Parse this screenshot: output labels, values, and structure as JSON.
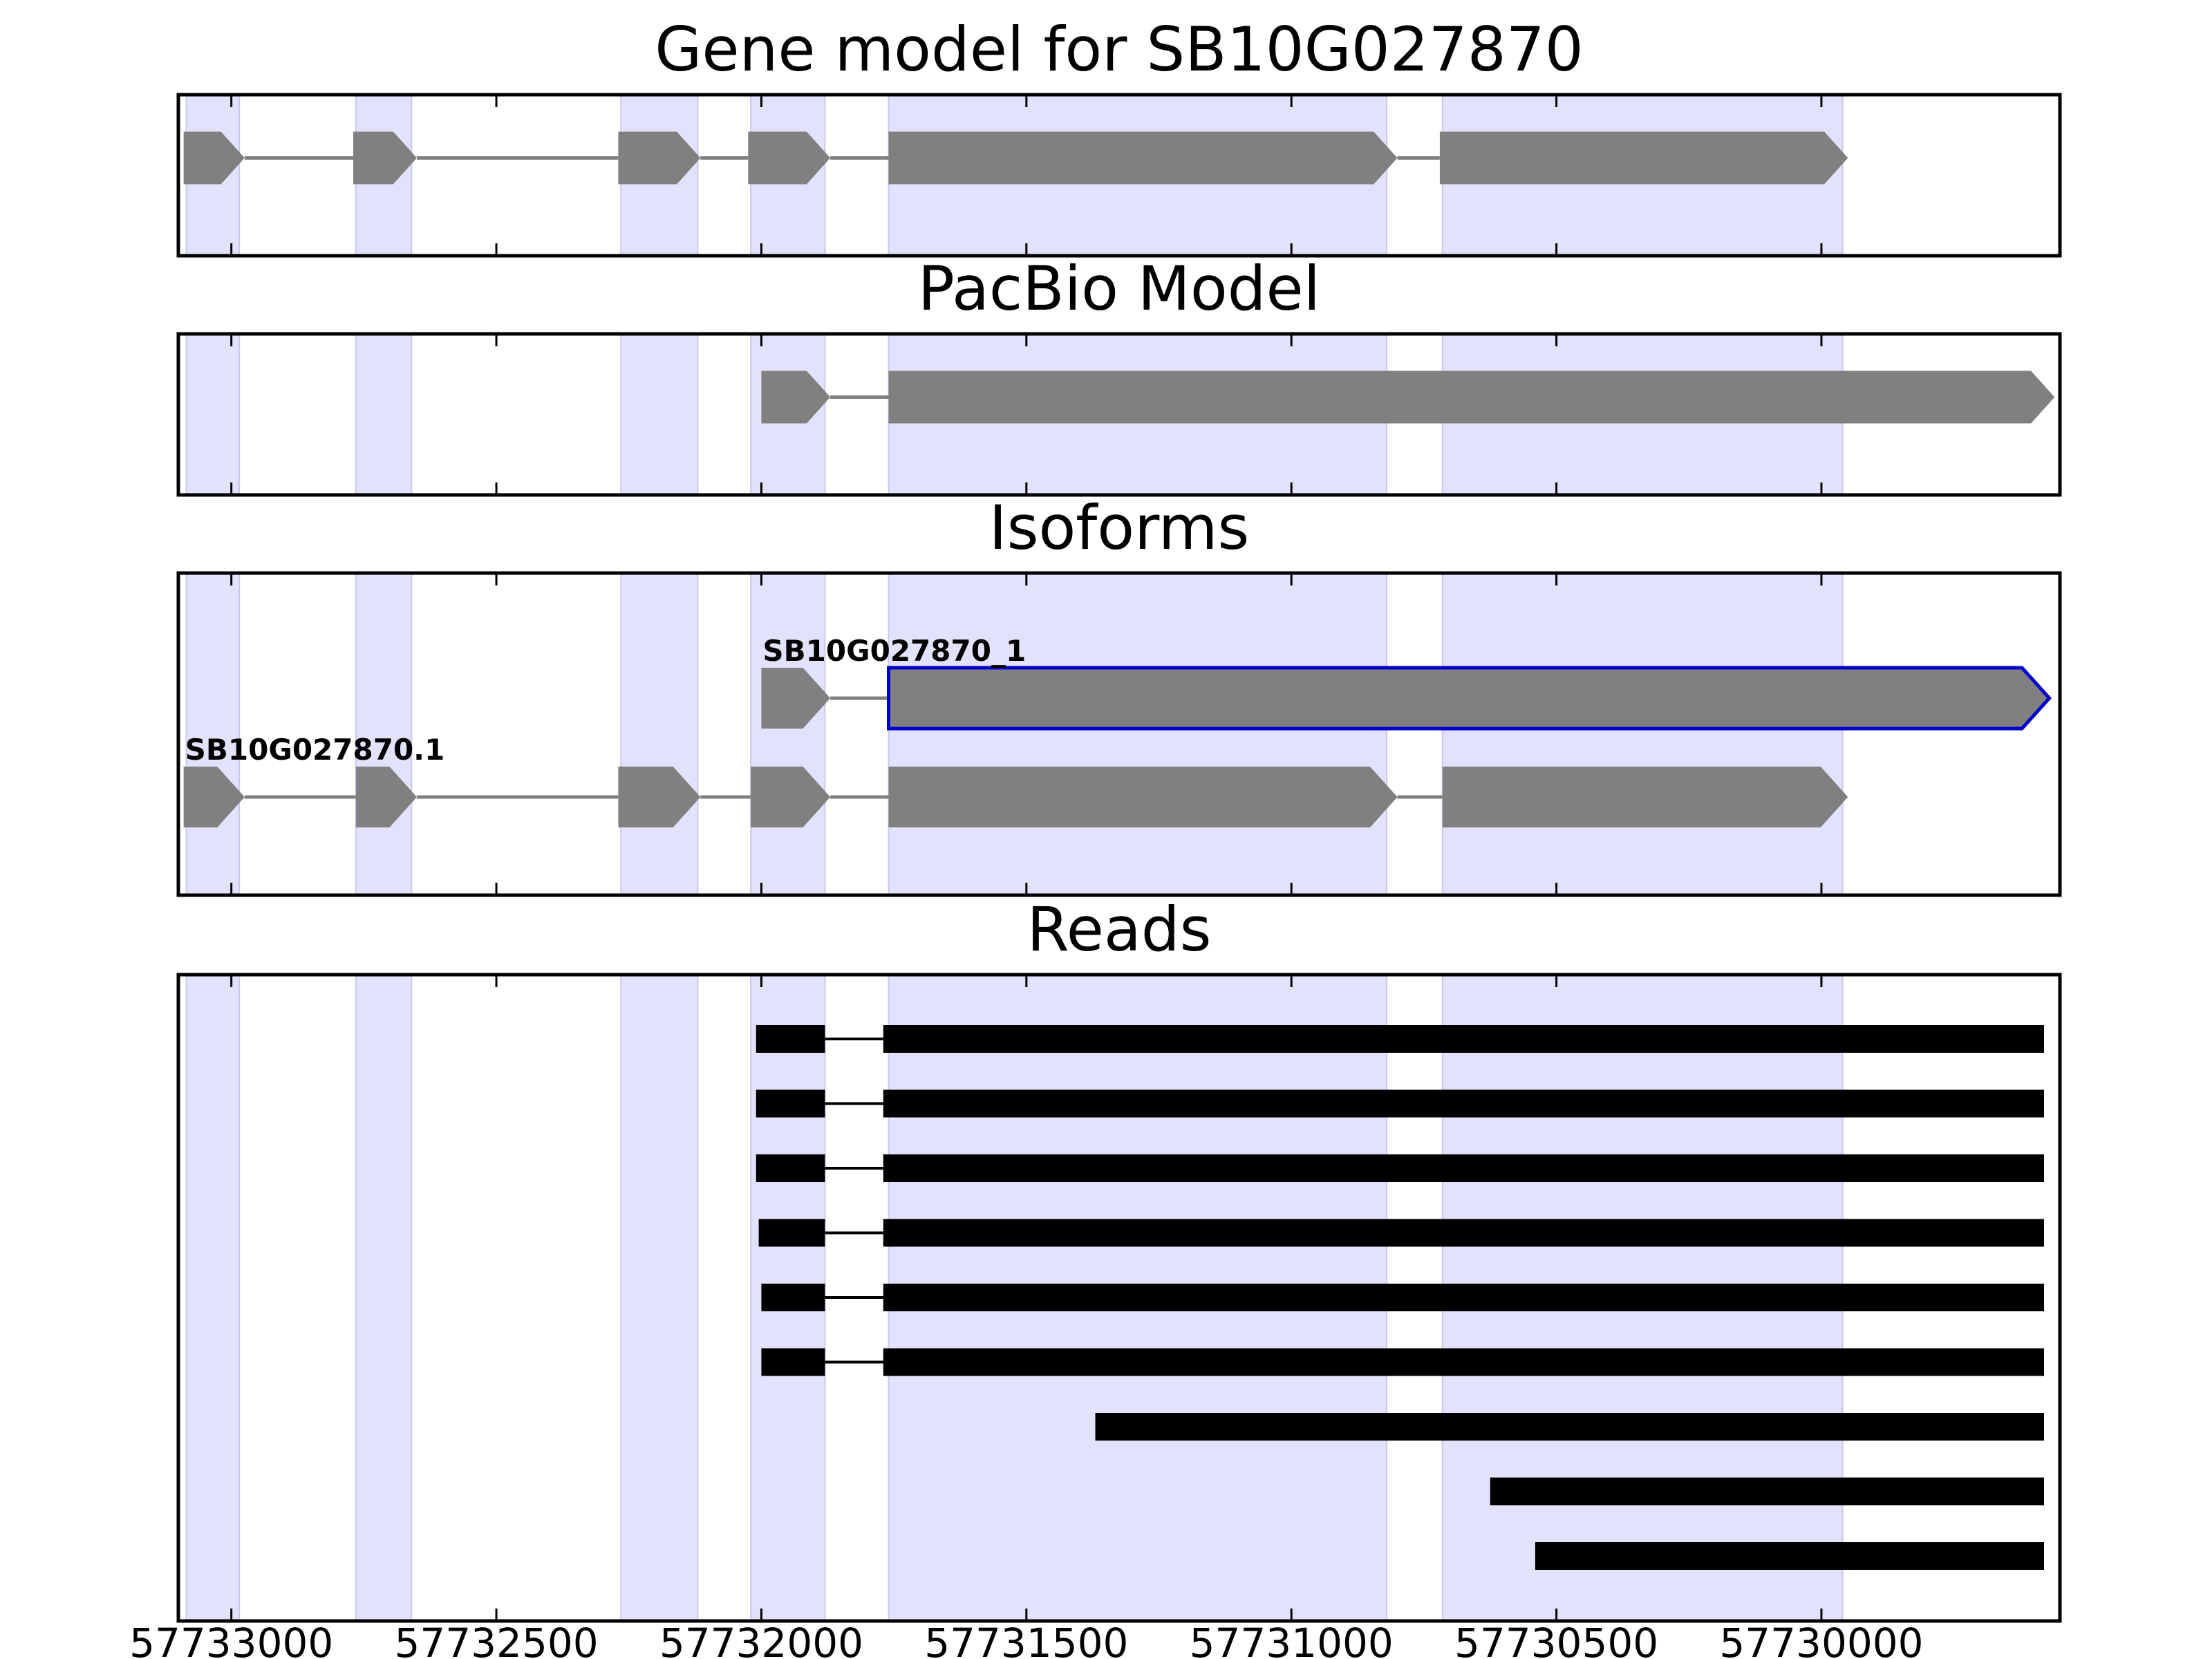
{
  "chart_data": {
    "type": "gene-track",
    "x_axis": {
      "range": [
        57733100,
        57729550
      ],
      "reversed": true,
      "ticks": [
        57733000,
        57732500,
        57732000,
        57731500,
        57731000,
        57730500,
        57730000
      ],
      "tick_labels": [
        "57733000",
        "57732500",
        "57732000",
        "57731500",
        "57731000",
        "57730500",
        "57730000"
      ]
    },
    "shaded_exon_regions": [
      [
        57733085,
        57732985
      ],
      [
        57732765,
        57732660
      ],
      [
        57732265,
        57732120
      ],
      [
        57732020,
        57731880
      ],
      [
        57731760,
        57730820
      ],
      [
        57730715,
        57729960
      ]
    ],
    "colors": {
      "exon_shade": "#e2e2fc",
      "feature": "#808080",
      "highlight_outline": "#0000cc",
      "read": "#000000"
    },
    "panels": [
      {
        "title": "Gene model for SB10G027870",
        "transcripts": [
          {
            "label": "",
            "exons": [
              [
                57733090,
                57732975
              ],
              [
                57732770,
                57732650
              ],
              [
                57732270,
                57732115
              ],
              [
                57732025,
                57731870
              ],
              [
                57731760,
                57730800
              ],
              [
                57730720,
                57729950
              ]
            ]
          }
        ]
      },
      {
        "title": "PacBio Model",
        "transcripts": [
          {
            "label": "",
            "exons": [
              [
                57732000,
                57731870
              ],
              [
                57731760,
                57729560
              ]
            ]
          }
        ]
      },
      {
        "title": "Isoforms",
        "transcripts": [
          {
            "label": "SB10G027870_1",
            "highlight": true,
            "exons": [
              [
                57732000,
                57731870
              ],
              [
                57731760,
                57729570
              ]
            ]
          },
          {
            "label": "SB10G027870.1",
            "highlight": false,
            "exons": [
              [
                57733090,
                57732975
              ],
              [
                57732765,
                57732650
              ],
              [
                57732270,
                57732115
              ],
              [
                57732020,
                57731870
              ],
              [
                57731760,
                57730800
              ],
              [
                57730715,
                57729950
              ]
            ]
          }
        ]
      },
      {
        "title": "Reads",
        "reads": [
          [
            [
              57732010,
              57731880
            ],
            [
              57731770,
              57729580
            ]
          ],
          [
            [
              57732010,
              57731880
            ],
            [
              57731770,
              57729580
            ]
          ],
          [
            [
              57732010,
              57731880
            ],
            [
              57731770,
              57729580
            ]
          ],
          [
            [
              57732005,
              57731880
            ],
            [
              57731770,
              57729580
            ]
          ],
          [
            [
              57732000,
              57731880
            ],
            [
              57731770,
              57729580
            ]
          ],
          [
            [
              57732000,
              57731880
            ],
            [
              57731770,
              57729580
            ]
          ],
          [
            [
              57731370,
              57729580
            ]
          ],
          [
            [
              57730625,
              57729580
            ]
          ],
          [
            [
              57730540,
              57729580
            ]
          ]
        ]
      }
    ]
  }
}
